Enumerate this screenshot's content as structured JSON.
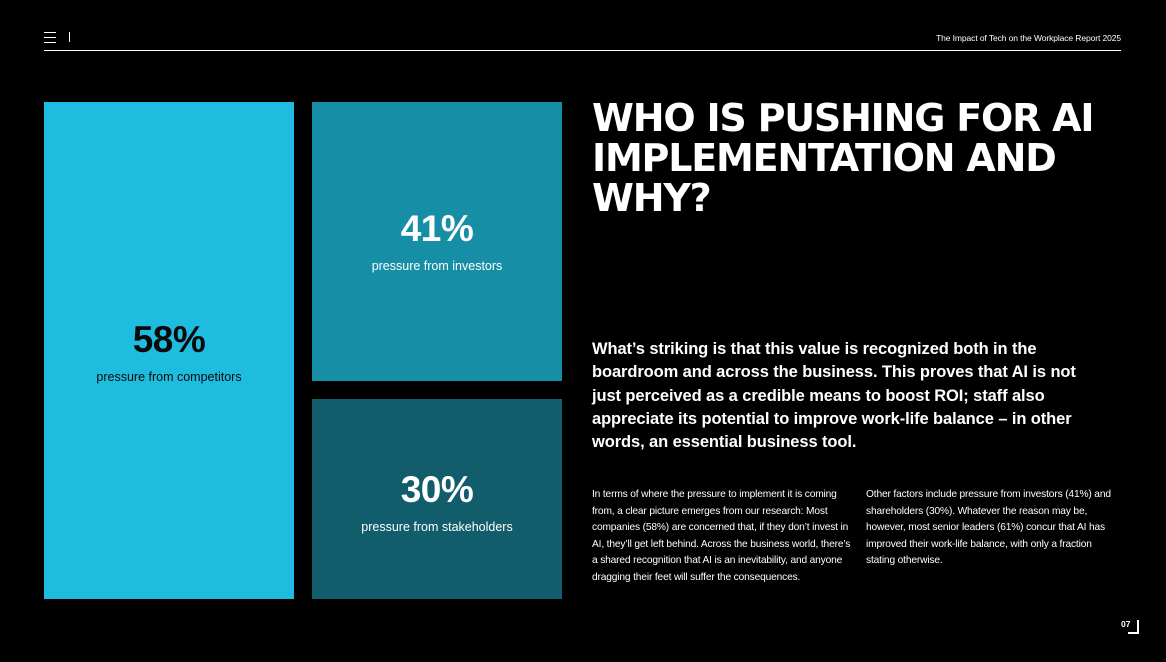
{
  "header": {
    "report_title": "The Impact of Tech on the Workplace Report 2025",
    "menu_icon": "hamburger-menu-icon"
  },
  "chart_data": {
    "type": "treemap",
    "title": "",
    "items": [
      {
        "value": 58,
        "display": "58%",
        "label": "pressure from competitors",
        "color": "#1ebde0"
      },
      {
        "value": 41,
        "display": "41%",
        "label": "pressure from investors",
        "color": "#168fa6"
      },
      {
        "value": 30,
        "display": "30%",
        "label": "pressure from stakeholders",
        "color": "#125d6c"
      }
    ]
  },
  "article": {
    "headline": "WHO IS PUSHING FOR AI IMPLEMENTATION AND WHY?",
    "lead": "What’s striking is that this value is recognized both in the boardroom and across the business. This proves that AI is not just perceived as a credible means to boost ROI; staff also appreciate its potential to improve work-life balance – in other words, an essential business tool.",
    "body_1": "In terms of where the pressure to implement it is coming from, a clear picture emerges from our research: Most companies (58%) are concerned that, if they don’t invest in AI, they’ll get left behind. Across the business world, there’s a shared recognition that AI is an inevitability, and anyone dragging their feet will suffer the consequences.",
    "body_2": "Other factors include pressure from investors (41%) and shareholders (30%). Whatever the reason may be, however, most senior leaders (61%) concur that AI has improved their work-life balance, with only a fraction stating otherwise."
  },
  "footer": {
    "page_number": "07"
  }
}
